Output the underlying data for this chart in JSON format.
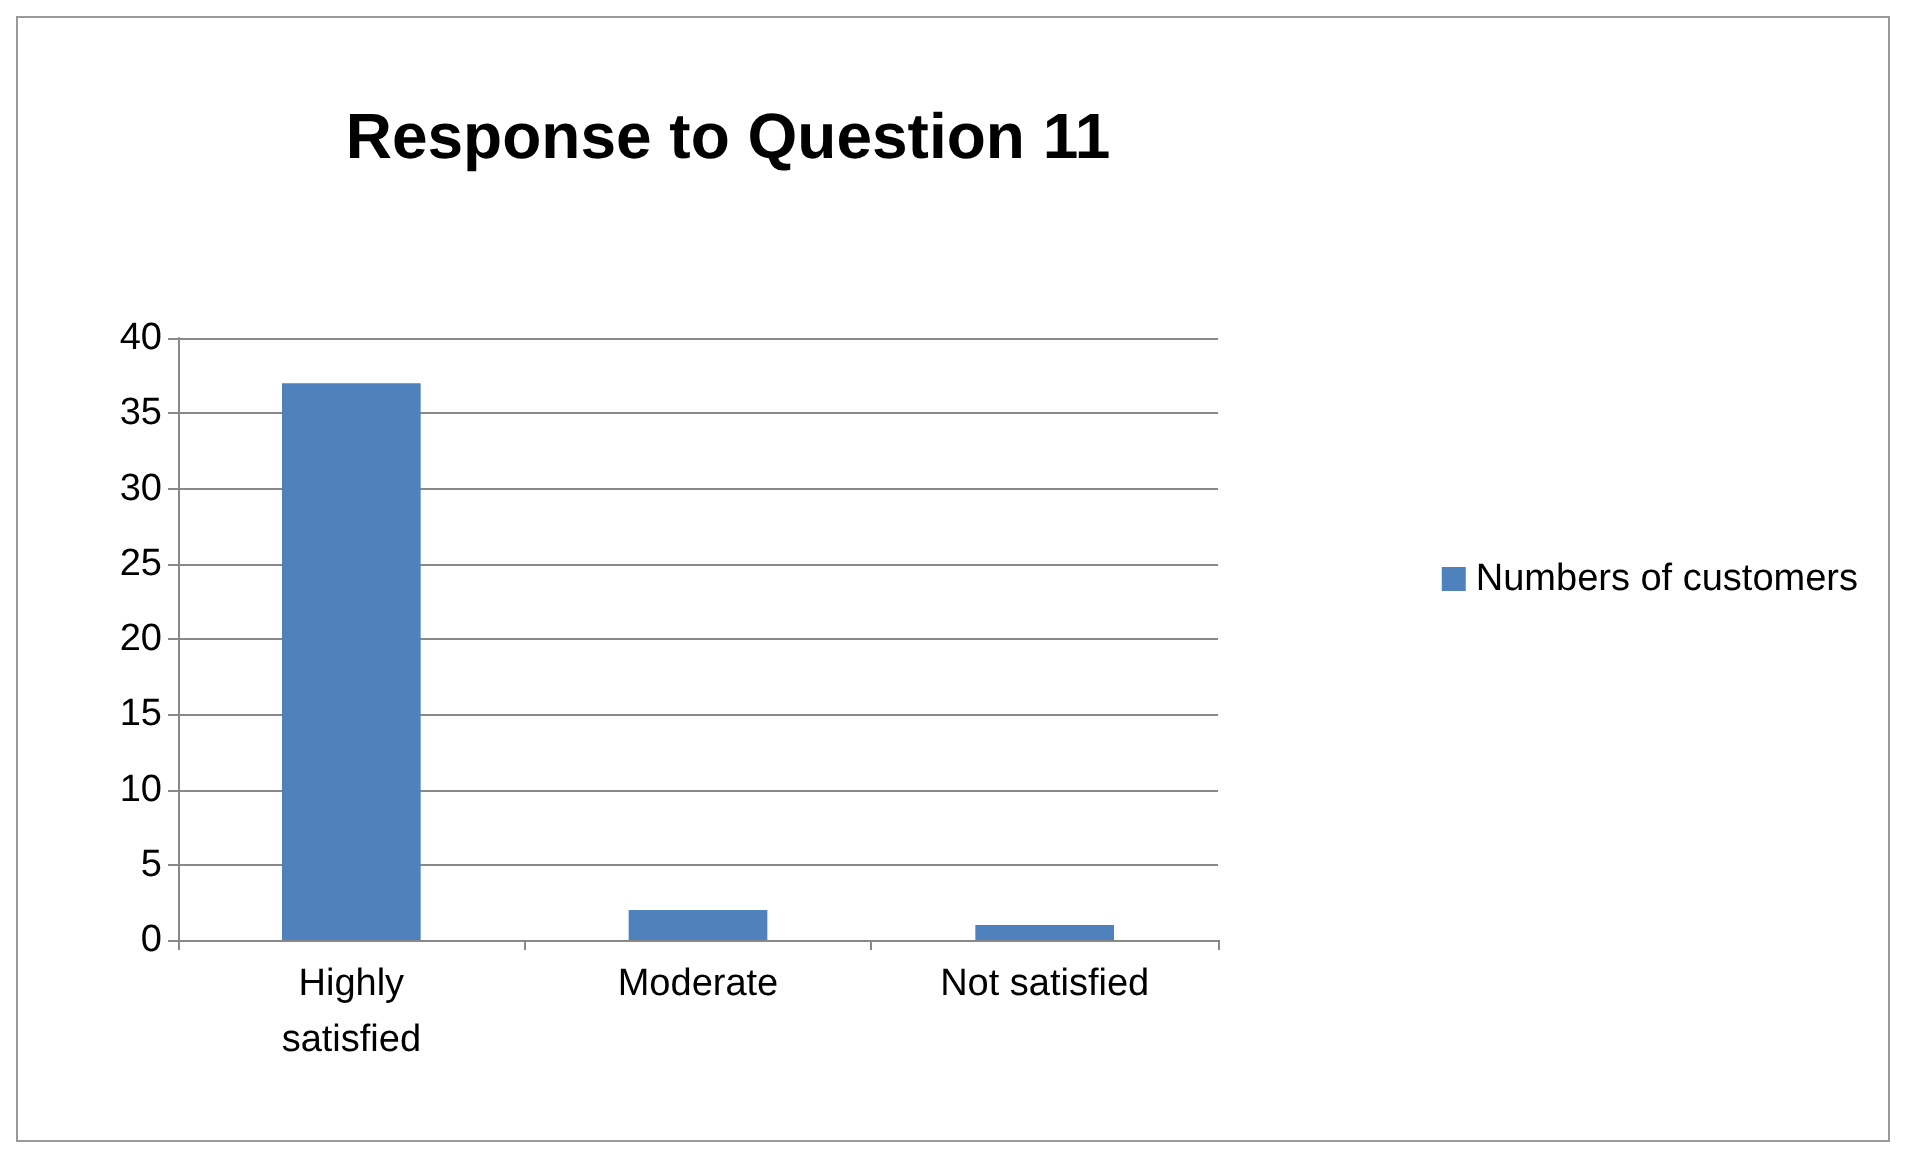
{
  "chart_data": {
    "type": "bar",
    "title": "Response to Question 11",
    "categories": [
      "Highly\nsatisfied",
      "Moderate",
      "Not satisfied"
    ],
    "series": [
      {
        "name": "Numbers of customers",
        "color": "#4f81bd",
        "values": [
          37,
          2,
          1
        ]
      }
    ],
    "ylim": [
      0,
      40
    ],
    "yticks": [
      0,
      5,
      10,
      15,
      20,
      25,
      30,
      35,
      40
    ],
    "grid": "y",
    "legend": "right"
  }
}
